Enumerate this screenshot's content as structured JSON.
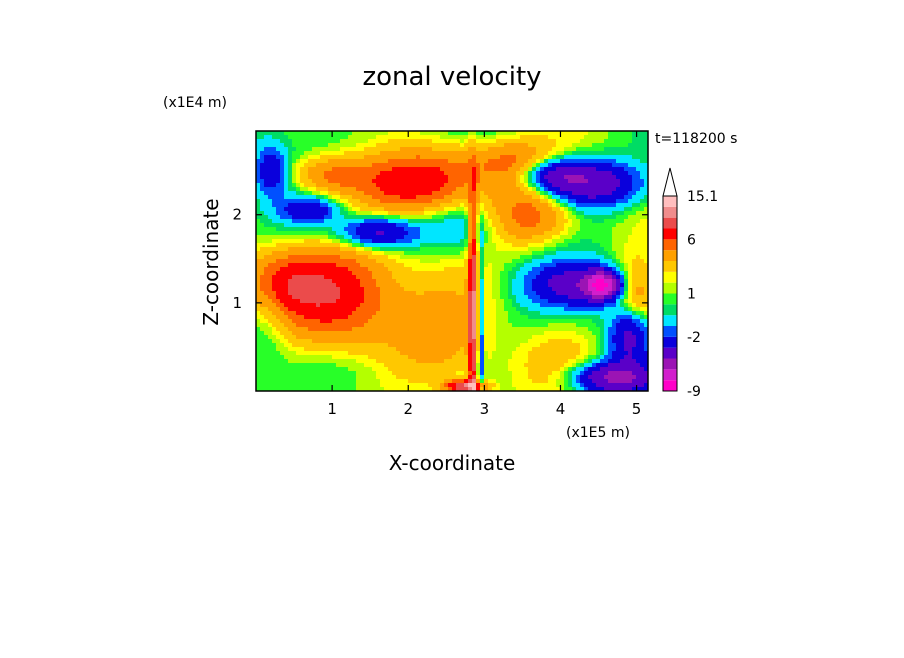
{
  "chart_data": {
    "type": "heatmap",
    "title": "zonal velocity",
    "xlabel": "X-coordinate",
    "ylabel": "Z-coordinate",
    "x_unit": "(x1E5 m)",
    "y_unit": "(x1E4 m)",
    "time_label": "t=118200 s",
    "xlim": [
      0,
      5.15
    ],
    "ylim": [
      0,
      2.95
    ],
    "x_ticks": [
      1,
      2,
      3,
      4,
      5
    ],
    "y_ticks": [
      1,
      2
    ],
    "grid": false,
    "legend": "right",
    "colorbar": {
      "labels": [
        {
          "value": 15.1,
          "text": "15.1"
        },
        {
          "value": 6,
          "text": "6"
        },
        {
          "value": 1,
          "text": "1"
        },
        {
          "value": -2,
          "text": "-2"
        },
        {
          "value": -9,
          "text": "-9"
        }
      ],
      "levels": [
        {
          "min": -20,
          "max": -14,
          "color": "#ff00c8"
        },
        {
          "min": -14,
          "max": -10,
          "color": "#d21ecd"
        },
        {
          "min": -10,
          "max": -7,
          "color": "#9b14b4"
        },
        {
          "min": -7,
          "max": -4,
          "color": "#5a00c8"
        },
        {
          "min": -4,
          "max": -2,
          "color": "#0a00dc"
        },
        {
          "min": -2,
          "max": -1,
          "color": "#0050ff"
        },
        {
          "min": -1,
          "max": 0,
          "color": "#00e6ff"
        },
        {
          "min": 0,
          "max": 0.5,
          "color": "#00dc64"
        },
        {
          "min": 0.5,
          "max": 1,
          "color": "#28ff28"
        },
        {
          "min": 1,
          "max": 1.5,
          "color": "#b4ff00"
        },
        {
          "min": 1.5,
          "max": 2,
          "color": "#ffff00"
        },
        {
          "min": 2,
          "max": 3,
          "color": "#ffc800"
        },
        {
          "min": 3,
          "max": 4.5,
          "color": "#ffa000"
        },
        {
          "min": 4.5,
          "max": 6,
          "color": "#ff6400"
        },
        {
          "min": 6,
          "max": 8,
          "color": "#ff0000"
        },
        {
          "min": 8,
          "max": 10.5,
          "color": "#eb4b4b"
        },
        {
          "min": 10.5,
          "max": 13,
          "color": "#f08c8c"
        },
        {
          "min": 13,
          "max": 15.1,
          "color": "#ffbebe"
        }
      ],
      "extend_max": true,
      "extend_max_color": "#ffffff"
    },
    "blobs": [
      {
        "x": 1.0,
        "z": 1.15,
        "sx": 0.55,
        "sz": 0.35,
        "v": 7
      },
      {
        "x": 0.3,
        "z": 1.25,
        "sx": 0.35,
        "sz": 0.25,
        "v": 4
      },
      {
        "x": 2.1,
        "z": 2.35,
        "sx": 0.55,
        "sz": 0.22,
        "v": 6
      },
      {
        "x": 0.95,
        "z": 2.45,
        "sx": 0.35,
        "sz": 0.15,
        "v": 4
      },
      {
        "x": 3.4,
        "z": 2.6,
        "sx": 0.35,
        "sz": 0.2,
        "v": 3
      },
      {
        "x": 4.4,
        "z": 2.35,
        "sx": 0.45,
        "sz": 0.18,
        "v": -7
      },
      {
        "x": 3.9,
        "z": 2.45,
        "sx": 0.3,
        "sz": 0.12,
        "v": -5
      },
      {
        "x": 4.25,
        "z": 1.2,
        "sx": 0.45,
        "sz": 0.17,
        "v": -6
      },
      {
        "x": 4.55,
        "z": 1.2,
        "sx": 0.15,
        "sz": 0.1,
        "v": -12
      },
      {
        "x": 4.9,
        "z": 0.7,
        "sx": 0.18,
        "sz": 0.3,
        "v": -6
      },
      {
        "x": 1.6,
        "z": 1.8,
        "sx": 0.35,
        "sz": 0.12,
        "v": -6
      },
      {
        "x": 0.7,
        "z": 2.05,
        "sx": 0.25,
        "sz": 0.1,
        "v": -4
      },
      {
        "x": 2.7,
        "z": 1.85,
        "sx": 0.4,
        "sz": 0.2,
        "v": -2
      },
      {
        "x": 0.9,
        "z": 0.35,
        "sx": 0.55,
        "sz": 0.25,
        "v": -1.5
      },
      {
        "x": 0.15,
        "z": 0.9,
        "sx": 0.2,
        "sz": 0.4,
        "v": -1.5
      },
      {
        "x": 3.25,
        "z": 0.55,
        "sx": 0.4,
        "sz": 0.35,
        "v": -0.8
      },
      {
        "x": 2.3,
        "z": 0.6,
        "sx": 0.6,
        "sz": 0.45,
        "v": 3
      },
      {
        "x": 1.2,
        "z": 0.55,
        "sx": 0.45,
        "sz": 0.3,
        "v": 1.8
      },
      {
        "x": 3.6,
        "z": 2.0,
        "sx": 0.4,
        "sz": 0.25,
        "v": 5
      },
      {
        "x": 4.95,
        "z": 1.05,
        "sx": 0.2,
        "sz": 0.25,
        "v": 6
      },
      {
        "x": 2.85,
        "z": 0.9,
        "sx": 0.04,
        "sz": 0.9,
        "v": 9
      },
      {
        "x": 2.95,
        "z": 0.6,
        "sx": 0.03,
        "sz": 0.7,
        "v": -4
      },
      {
        "x": 2.75,
        "z": 0.05,
        "sx": 0.18,
        "sz": 0.05,
        "v": 10
      },
      {
        "x": 4.0,
        "z": 0.4,
        "sx": 0.5,
        "sz": 0.25,
        "v": 1.5
      },
      {
        "x": 2.9,
        "z": 2.6,
        "sx": 0.6,
        "sz": 0.2,
        "v": 2.2
      },
      {
        "x": 0.2,
        "z": 2.5,
        "sx": 0.15,
        "sz": 0.2,
        "v": -4
      },
      {
        "x": 4.7,
        "z": 0.15,
        "sx": 0.35,
        "sz": 0.12,
        "v": -8
      }
    ]
  }
}
